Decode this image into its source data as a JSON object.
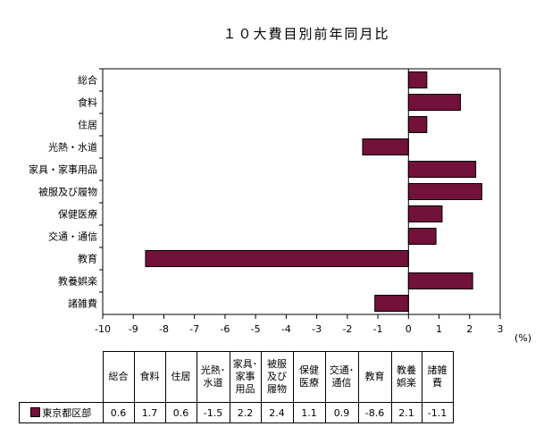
{
  "chart_data": {
    "type": "bar",
    "orientation": "horizontal",
    "title": "１０大費目別前年同月比",
    "unit": "(%)",
    "categories": [
      "総合",
      "食料",
      "住居",
      "光熱・水道",
      "家具・家事用品",
      "被服及び履物",
      "保健医療",
      "交通・通信",
      "教育",
      "教養娯楽",
      "諸雑費"
    ],
    "series": [
      {
        "name": "東京都区部",
        "values": [
          0.6,
          1.7,
          0.6,
          -1.5,
          2.2,
          2.4,
          1.1,
          0.9,
          -8.6,
          2.1,
          -1.1
        ],
        "color": "#72113a"
      }
    ],
    "xlim": [
      -10,
      3
    ],
    "xticks": [
      -10,
      -9,
      -8,
      -7,
      -6,
      -5,
      -4,
      -3,
      -2,
      -1,
      0,
      1,
      2,
      3
    ],
    "grid": false,
    "legend": "data-table"
  },
  "table": {
    "headers": [
      "総合",
      "食料",
      "住居",
      "光熱･\n水道",
      "家具･\n家事\n用品",
      "被服\n及び\n履物",
      "保健\n医療",
      "交通･\n通信",
      "教育",
      "教養\n娯楽",
      "諸雑\n費"
    ],
    "series_label": "東京都区部",
    "values": [
      "0.6",
      "1.7",
      "0.6",
      "-1.5",
      "2.2",
      "2.4",
      "1.1",
      "0.9",
      "-8.6",
      "2.1",
      "-1.1"
    ]
  }
}
